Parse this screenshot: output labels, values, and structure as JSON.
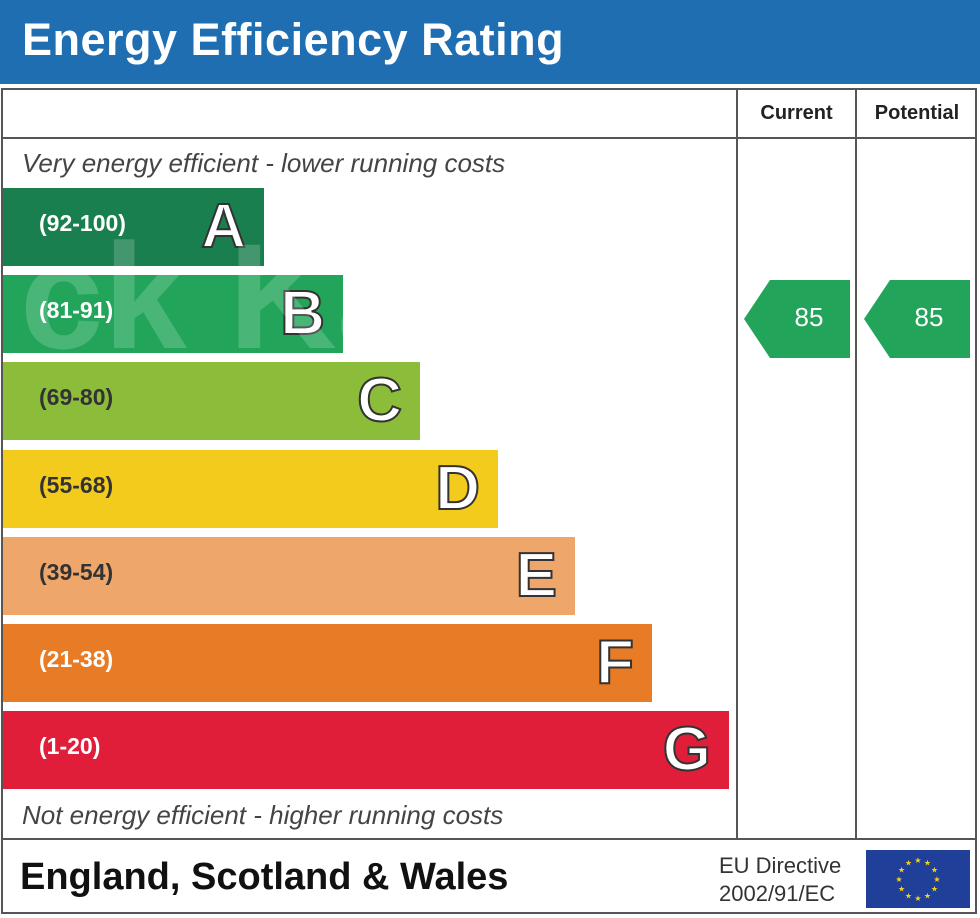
{
  "header": {
    "title": "Energy Efficiency Rating"
  },
  "columns": {
    "current": "Current",
    "potential": "Potential"
  },
  "captions": {
    "top": "Very energy efficient - lower running costs",
    "bottom": "Not energy efficient - higher running costs"
  },
  "chart_data": {
    "type": "bar",
    "title": "Energy Efficiency Rating",
    "categories": [
      "A",
      "B",
      "C",
      "D",
      "E",
      "F",
      "G"
    ],
    "ranges": [
      "(92-100)",
      "(81-91)",
      "(69-80)",
      "(55-68)",
      "(39-54)",
      "(21-38)",
      "(1-20)"
    ],
    "colors": [
      "#1a7f4f",
      "#22a55a",
      "#8bbd3a",
      "#f2cb1d",
      "#efa66b",
      "#e87b26",
      "#e01e3a"
    ],
    "current": 85,
    "potential": 85
  },
  "ratings": {
    "current_value": "85",
    "potential_value": "85",
    "arrow_color": "#22a55a"
  },
  "footer": {
    "region": "England, Scotland & Wales",
    "directive_line1": "EU Directive",
    "directive_line2": "2002/91/EC"
  },
  "watermark": {
    "text": "ck Ka"
  }
}
